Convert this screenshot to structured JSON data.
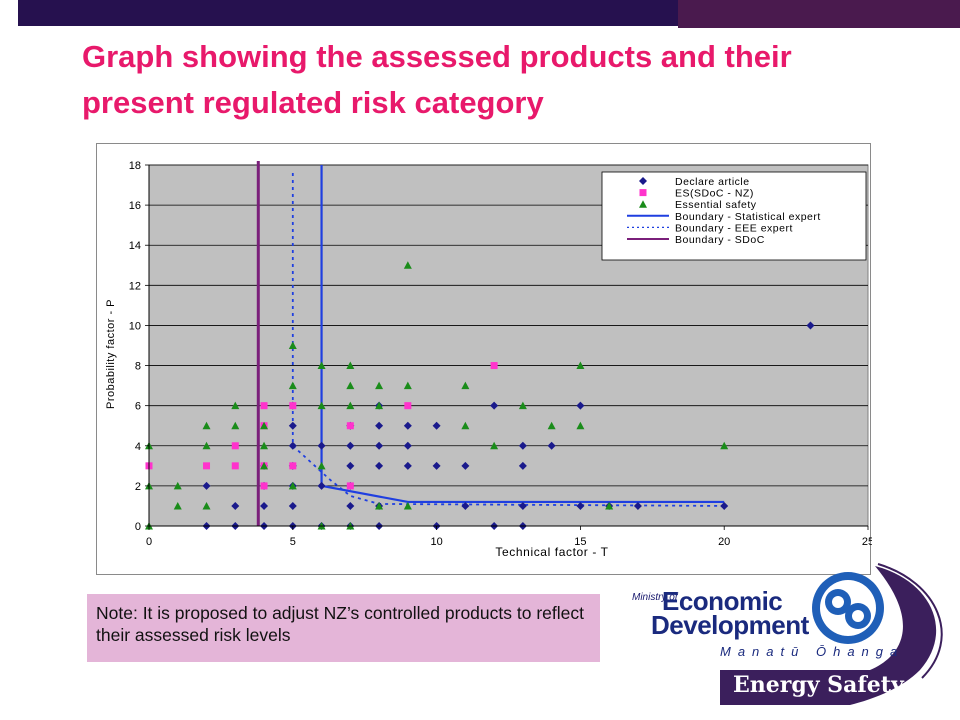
{
  "slide": {
    "title": "Graph showing the assessed products and their present regulated risk category",
    "note": "Note: It is proposed to adjust NZ’s controlled products to reflect their assessed risk levels"
  },
  "logo": {
    "ministry_of": "Ministry of",
    "economic": "Economic",
    "development": "Development",
    "maori": "Manatū Ōhanga",
    "energy_safety": "Energy Safety",
    "colors": {
      "navy": "#1a2a7e",
      "purple": "#3b1f5c",
      "blue": "#1f5fb8"
    }
  },
  "chart_data": {
    "type": "scatter",
    "xlabel": "Technical factor - T",
    "ylabel": "Probability factor - P",
    "xlim": [
      0,
      25
    ],
    "ylim": [
      0,
      18
    ],
    "xticks": [
      0,
      5,
      10,
      15,
      20,
      25
    ],
    "yticks": [
      0,
      2,
      4,
      6,
      8,
      10,
      12,
      14,
      16,
      18
    ],
    "grid": "horizontal",
    "legend_position": "top-right",
    "series": [
      {
        "name": "Declare article",
        "marker": "diamond",
        "color": "#1a1a8c",
        "points": [
          [
            2,
            0
          ],
          [
            3,
            0
          ],
          [
            4,
            0
          ],
          [
            5,
            0
          ],
          [
            6,
            0
          ],
          [
            7,
            0
          ],
          [
            8,
            0
          ],
          [
            10,
            0
          ],
          [
            12,
            0
          ],
          [
            13,
            0
          ],
          [
            3,
            1
          ],
          [
            4,
            1
          ],
          [
            5,
            1
          ],
          [
            7,
            1
          ],
          [
            8,
            1
          ],
          [
            11,
            1
          ],
          [
            13,
            1
          ],
          [
            15,
            1
          ],
          [
            16,
            1
          ],
          [
            17,
            1
          ],
          [
            20,
            1
          ],
          [
            2,
            2
          ],
          [
            4,
            2
          ],
          [
            5,
            2
          ],
          [
            6,
            2
          ],
          [
            7,
            2
          ],
          [
            4,
            3
          ],
          [
            5,
            3
          ],
          [
            7,
            3
          ],
          [
            8,
            3
          ],
          [
            9,
            3
          ],
          [
            10,
            3
          ],
          [
            11,
            3
          ],
          [
            13,
            3
          ],
          [
            5,
            4
          ],
          [
            6,
            4
          ],
          [
            7,
            4
          ],
          [
            8,
            4
          ],
          [
            9,
            4
          ],
          [
            13,
            4
          ],
          [
            14,
            4
          ],
          [
            5,
            5
          ],
          [
            7,
            5
          ],
          [
            8,
            5
          ],
          [
            9,
            5
          ],
          [
            10,
            5
          ],
          [
            5,
            6
          ],
          [
            8,
            6
          ],
          [
            12,
            6
          ],
          [
            15,
            6
          ],
          [
            23,
            10
          ]
        ]
      },
      {
        "name": "ES(SDoC - NZ)",
        "marker": "square",
        "color": "#ff33cc",
        "points": [
          [
            0,
            3
          ],
          [
            2,
            3
          ],
          [
            3,
            3
          ],
          [
            4,
            3
          ],
          [
            5,
            3
          ],
          [
            3,
            4
          ],
          [
            4,
            5
          ],
          [
            7,
            5
          ],
          [
            4,
            6
          ],
          [
            5,
            6
          ],
          [
            9,
            6
          ],
          [
            12,
            8
          ],
          [
            4,
            2
          ],
          [
            7,
            2
          ]
        ]
      },
      {
        "name": "Essential safety",
        "marker": "triangle",
        "color": "#1a8c1a",
        "points": [
          [
            0,
            0
          ],
          [
            1,
            1
          ],
          [
            2,
            1
          ],
          [
            0,
            2
          ],
          [
            1,
            2
          ],
          [
            0,
            4
          ],
          [
            2,
            4
          ],
          [
            2,
            5
          ],
          [
            3,
            5
          ],
          [
            3,
            6
          ],
          [
            4,
            4
          ],
          [
            4,
            5
          ],
          [
            4,
            3
          ],
          [
            5,
            2
          ],
          [
            5,
            7
          ],
          [
            5,
            9
          ],
          [
            6,
            6
          ],
          [
            6,
            8
          ],
          [
            6,
            3
          ],
          [
            7,
            6
          ],
          [
            7,
            7
          ],
          [
            7,
            8
          ],
          [
            8,
            7
          ],
          [
            8,
            6
          ],
          [
            9,
            7
          ],
          [
            9,
            13
          ],
          [
            11,
            5
          ],
          [
            11,
            7
          ],
          [
            12,
            4
          ],
          [
            13,
            6
          ],
          [
            14,
            5
          ],
          [
            15,
            5
          ],
          [
            15,
            8
          ],
          [
            16,
            1
          ],
          [
            20,
            4
          ],
          [
            9,
            1
          ],
          [
            7,
            0
          ],
          [
            6,
            0
          ],
          [
            8,
            1
          ]
        ]
      }
    ],
    "boundaries": [
      {
        "name": "Boundary - Statistical expert",
        "style": "solid",
        "color": "#1f3fe0",
        "points": [
          [
            6,
            18
          ],
          [
            6,
            2
          ],
          [
            9,
            1.2
          ],
          [
            20,
            1.2
          ]
        ]
      },
      {
        "name": "Boundary - EEE expert",
        "style": "dotted",
        "color": "#1f3fe0",
        "points": [
          [
            5,
            17.6
          ],
          [
            5,
            4
          ],
          [
            6.3,
            2.3
          ],
          [
            7,
            1.5
          ],
          [
            8,
            1.1
          ],
          [
            20,
            1
          ]
        ]
      },
      {
        "name": "Boundary - SDoC",
        "style": "solid",
        "color": "#7a1f7a",
        "points": [
          [
            3.8,
            18.2
          ],
          [
            3.8,
            0
          ]
        ]
      }
    ]
  }
}
